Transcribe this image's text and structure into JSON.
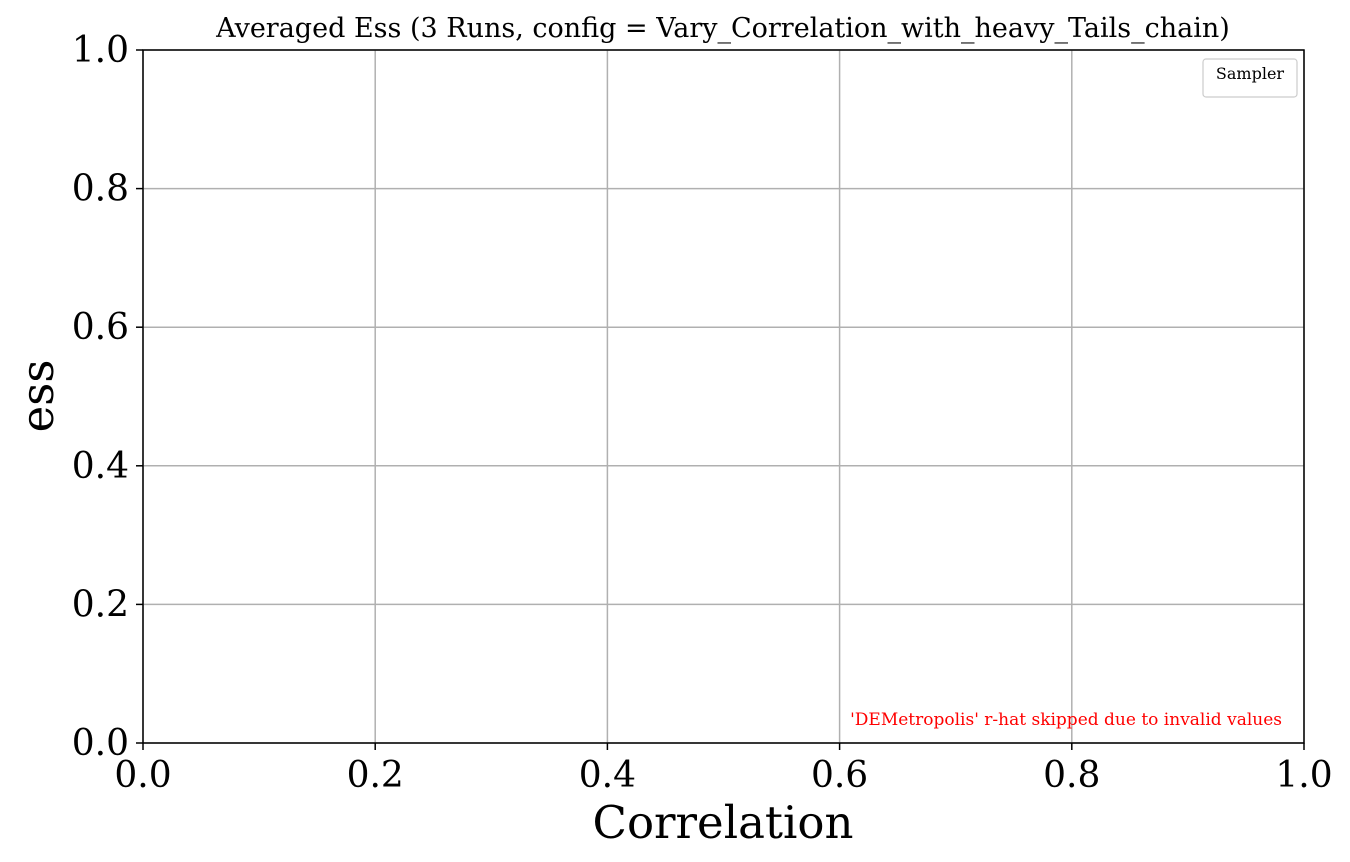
{
  "chart_data": {
    "type": "line",
    "title": "Averaged Ess (3 Runs, config = Vary_Correlation_with_heavy_Tails_chain)",
    "xlabel": "Correlation",
    "ylabel": "ess",
    "xlim": [
      0.0,
      1.0
    ],
    "ylim": [
      0.0,
      1.0
    ],
    "xticks": [
      "0.0",
      "0.2",
      "0.4",
      "0.6",
      "0.8",
      "1.0"
    ],
    "yticks": [
      "0.0",
      "0.2",
      "0.4",
      "0.6",
      "0.8",
      "1.0"
    ],
    "grid": true,
    "series": [],
    "legend": {
      "title": "Sampler",
      "position": "top-right",
      "entries": []
    },
    "annotation": {
      "text": "'DEMetropolis' r-hat skipped due to invalid values",
      "color": "#ff0000",
      "position": "bottom-right"
    }
  }
}
